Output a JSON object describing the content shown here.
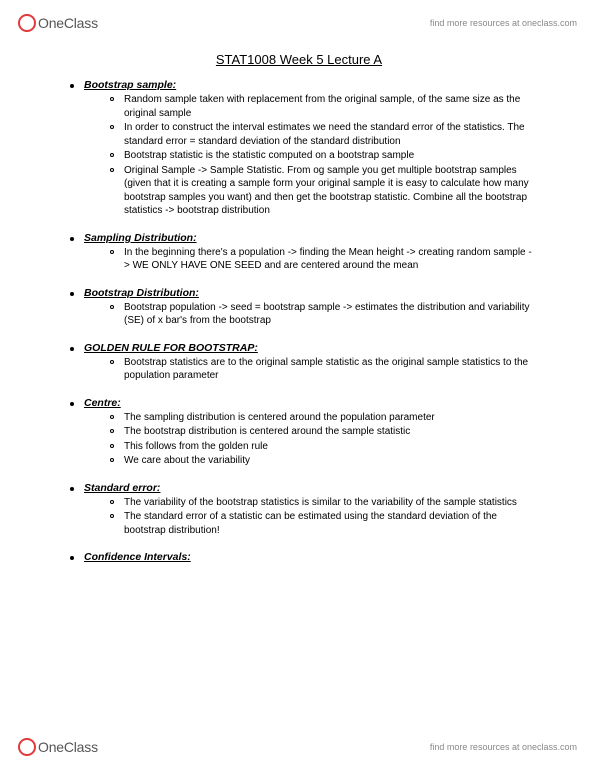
{
  "brand": {
    "name": "OneClass",
    "resource_text": "find more resources at oneclass.com",
    "logo_border_color": "#e03a3a"
  },
  "doc_title": "STAT1008 Week 5 Lecture A",
  "sections": [
    {
      "title": "Bootstrap sample:",
      "items": [
        "Random sample taken with replacement from the original sample, of the same size as the original sample",
        "In order to construct the interval estimates we need the standard error of the statistics. The standard error = standard deviation of the standard distribution",
        "Bootstrap statistic is the statistic computed on a bootstrap sample",
        "Original Sample -> Sample Statistic. From og sample you get multiple bootstrap samples (given that it is creating a sample form your original sample it is easy to calculate how many bootstrap samples you want) and then get the bootstrap statistic. Combine all the bootstrap statistics -> bootstrap distribution"
      ]
    },
    {
      "title": "Sampling Distribution:",
      "items": [
        "In the beginning there's a population -> finding the Mean height -> creating random sample -> WE ONLY HAVE ONE SEED and are centered around the mean"
      ]
    },
    {
      "title": "Bootstrap Distribution:",
      "items": [
        "Bootstrap population -> seed = bootstrap sample -> estimates the distribution and variability (SE) of x bar's from the bootstrap"
      ]
    },
    {
      "title": "GOLDEN RULE FOR BOOTSTRAP:",
      "items": [
        "Bootstrap statistics are to the original sample statistic as the original sample statistics to the population parameter"
      ]
    },
    {
      "title": "Centre:",
      "items": [
        "The sampling distribution is centered around the population parameter",
        "The bootstrap distribution is centered around the sample statistic",
        "This follows from the golden rule",
        "We care about the variability"
      ]
    },
    {
      "title": "Standard error:",
      "items": [
        "The variability of the bootstrap statistics is similar to the variability of the sample statistics",
        "The standard error of a statistic can be estimated using the standard deviation of the bootstrap distribution!"
      ]
    },
    {
      "title": "Confidence Intervals:",
      "items": []
    }
  ]
}
